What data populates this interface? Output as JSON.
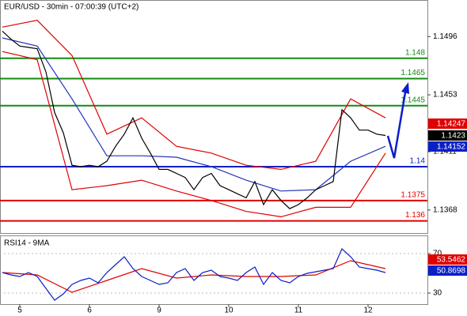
{
  "chart_data": [
    {
      "type": "line",
      "title": "EUR/USD - 30min - 07:00:39 (UTC+2)",
      "xlim": [
        -0.284,
        5.852
      ],
      "ylim": [
        1.1351,
        1.1523
      ],
      "yticks": [
        1.1496,
        1.1453,
        1.1411,
        1.1368
      ],
      "levels": [
        {
          "value": 1.148,
          "color": "#138a13"
        },
        {
          "value": 1.1465,
          "color": "#138a13"
        },
        {
          "value": 1.1445,
          "color": "#138a13"
        },
        {
          "value": 1.14,
          "color": "#0a1fc8"
        },
        {
          "value": 1.1375,
          "color": "#e00000"
        },
        {
          "value": 1.136,
          "color": "#e00000"
        }
      ],
      "series": [
        {
          "color": "#e00000",
          "x": [
            -0.25,
            0.25,
            0.75,
            1.25,
            1.75,
            2.25,
            2.75,
            3.25,
            3.75,
            4.25,
            4.75,
            5.25
          ],
          "values": [
            1.1503,
            1.1508,
            1.1482,
            1.1424,
            1.1436,
            1.1415,
            1.141,
            1.1401,
            1.1398,
            1.1404,
            1.145,
            1.1436
          ]
        },
        {
          "color": "#e00000",
          "x": [
            -0.25,
            0.25,
            0.75,
            1.25,
            1.75,
            2.25,
            2.75,
            3.25,
            3.75,
            4.25,
            4.75,
            5.25
          ],
          "values": [
            1.1485,
            1.1479,
            1.1383,
            1.1386,
            1.139,
            1.1382,
            1.1375,
            1.1367,
            1.1363,
            1.137,
            1.137,
            1.141
          ]
        },
        {
          "color": "#2233bb",
          "x": [
            -0.25,
            0.25,
            0.75,
            1.25,
            1.75,
            2.25,
            2.75,
            3.25,
            3.75,
            4.25,
            4.75,
            5.25
          ],
          "values": [
            1.1495,
            1.1489,
            1.145,
            1.1408,
            1.1408,
            1.1407,
            1.14,
            1.139,
            1.1382,
            1.1383,
            1.1404,
            1.1415
          ]
        },
        {
          "color": "#000000",
          "x": [
            -0.25,
            -0.125,
            0,
            0.125,
            0.25,
            0.375,
            0.5,
            0.625,
            0.75,
            0.875,
            1,
            1.125,
            1.25,
            1.375,
            1.5,
            1.625,
            1.75,
            1.875,
            2,
            2.125,
            2.25,
            2.375,
            2.5,
            2.625,
            2.75,
            2.875,
            3,
            3.125,
            3.25,
            3.375,
            3.5,
            3.625,
            3.75,
            3.875,
            4,
            4.125,
            4.25,
            4.375,
            4.5,
            4.625,
            4.75,
            4.875,
            5,
            5.125,
            5.25
          ],
          "values": [
            1.15,
            1.1494,
            1.1489,
            1.1488,
            1.1487,
            1.147,
            1.144,
            1.1425,
            1.1401,
            1.14,
            1.1401,
            1.14,
            1.1404,
            1.1415,
            1.1424,
            1.1436,
            1.1421,
            1.141,
            1.1398,
            1.1398,
            1.1395,
            1.1392,
            1.1383,
            1.1392,
            1.1395,
            1.1386,
            1.1383,
            1.138,
            1.1377,
            1.1389,
            1.1372,
            1.1383,
            1.1375,
            1.1369,
            1.1372,
            1.1377,
            1.1383,
            1.1386,
            1.1389,
            1.1442,
            1.1436,
            1.1427,
            1.1427,
            1.1424,
            1.1423
          ]
        }
      ],
      "marker_labels": [
        {
          "label": "1.14247",
          "color": "#e00000"
        },
        {
          "label": "1.1423",
          "color": "#000000"
        },
        {
          "label": "1.14152",
          "color": "#0a1fc8"
        }
      ]
    },
    {
      "type": "line",
      "title": "RSI14 - 9MA",
      "xlim": [
        -0.284,
        5.852
      ],
      "ylim": [
        18.8,
        88.4
      ],
      "yticks": [
        70,
        30
      ],
      "xticks": [
        {
          "value": 0,
          "label": "5"
        },
        {
          "value": 1,
          "label": "6"
        },
        {
          "value": 2,
          "label": "9"
        },
        {
          "value": 3,
          "label": "10"
        },
        {
          "value": 4,
          "label": "11"
        },
        {
          "value": 5,
          "label": "12"
        }
      ],
      "series": [
        {
          "color": "#e00000",
          "x": [
            -0.25,
            0.25,
            0.75,
            1.25,
            1.75,
            2.25,
            2.75,
            3.25,
            3.75,
            4.25,
            4.75,
            5.25
          ],
          "values": [
            50.8,
            48.4,
            30.8,
            42.8,
            54.8,
            45.2,
            48.4,
            46.8,
            46.8,
            48.4,
            62.8,
            54.8
          ]
        },
        {
          "color": "#0a1fc8",
          "x": [
            -0.25,
            -0.125,
            0,
            0.125,
            0.25,
            0.375,
            0.5,
            0.625,
            0.75,
            0.875,
            1,
            1.125,
            1.25,
            1.375,
            1.5,
            1.625,
            1.75,
            1.875,
            2,
            2.125,
            2.25,
            2.375,
            2.5,
            2.625,
            2.75,
            2.875,
            3,
            3.125,
            3.25,
            3.375,
            3.5,
            3.625,
            3.75,
            3.875,
            4,
            4.125,
            4.25,
            4.375,
            4.5,
            4.625,
            4.75,
            4.875,
            5,
            5.125,
            5.25
          ],
          "values": [
            50.8,
            48.4,
            46.8,
            50.8,
            46.8,
            34.8,
            22.8,
            29.2,
            38.8,
            42.8,
            45.2,
            40.4,
            50.8,
            58.8,
            66.8,
            54.8,
            46.8,
            42.8,
            38.8,
            40.4,
            50.8,
            54.8,
            42.8,
            50.8,
            53.2,
            46.8,
            45.2,
            42.8,
            50.8,
            56.4,
            38.8,
            50.8,
            42.8,
            40.4,
            46.8,
            50,
            51.6,
            53.2,
            54.8,
            74.8,
            66.8,
            56.4,
            54.8,
            53.2,
            50.8
          ]
        }
      ],
      "marker_labels": [
        {
          "label": "53.5462",
          "color": "#e00000"
        },
        {
          "label": "50.8698",
          "color": "#0a1fc8"
        }
      ]
    }
  ]
}
